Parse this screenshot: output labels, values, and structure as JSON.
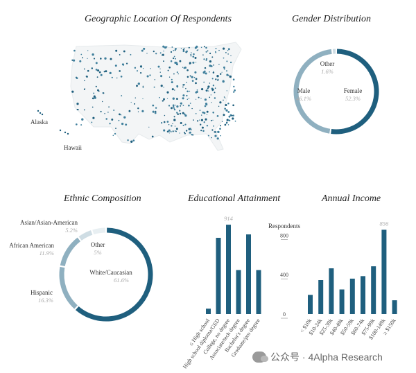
{
  "titles": {
    "geo": "Geographic Location Of Respondents",
    "gender": "Gender Distribution",
    "ethnic": "Ethnic Composition",
    "education": "Educational Attainment",
    "income": "Annual Income"
  },
  "map_labels": {
    "alaska": "Alaska",
    "hawaii": "Hawaii"
  },
  "colors": {
    "dark": "#1f5f7e",
    "mid": "#8fb0c0",
    "light": "#cfdde4",
    "pale": "#e8eff2"
  },
  "chart_data": [
    {
      "type": "pie",
      "name": "gender",
      "title": "Gender Distribution",
      "slices": [
        {
          "label": "Female",
          "value": 52.3,
          "display": "52.3%"
        },
        {
          "label": "Male",
          "value": 46.1,
          "display": "46.1%"
        },
        {
          "label": "Other",
          "value": 1.6,
          "display": "1.6%"
        }
      ]
    },
    {
      "type": "pie",
      "name": "ethnic",
      "title": "Ethnic Composition",
      "slices": [
        {
          "label": "White/Caucasian",
          "value": 61.6,
          "display": "61.6%"
        },
        {
          "label": "Hispanic",
          "value": 16.3,
          "display": "16.3%"
        },
        {
          "label": "African American",
          "value": 11.9,
          "display": "11.9%"
        },
        {
          "label": "Asian/Asian-American",
          "value": 5.2,
          "display": "5.2%"
        },
        {
          "label": "Other",
          "value": 5,
          "display": "5%"
        }
      ]
    },
    {
      "type": "bar",
      "name": "education",
      "title": "Educational Attainment",
      "categories": [
        "≤ High school",
        "High school diploma/GED",
        "College, no degree",
        "Associate/tech degree",
        "Bachelor's degree",
        "Graduate/pro degree"
      ],
      "values": [
        55,
        780,
        914,
        450,
        815,
        450
      ],
      "highlight": {
        "index": 2,
        "label": "914"
      },
      "ylim": [
        0,
        1000
      ],
      "yticks": [
        0,
        400,
        800
      ],
      "ylabel": "Respondents",
      "grid": false
    },
    {
      "type": "bar",
      "name": "income",
      "title": "Annual Income",
      "categories": [
        "< $10k",
        "$10-24k",
        "$25-39k",
        "$40-49k",
        "$50-59k",
        "$60-74k",
        "$75-99k",
        "$100-149k",
        "≥ $150k"
      ],
      "values": [
        195,
        345,
        465,
        250,
        360,
        385,
        485,
        856,
        140
      ],
      "highlight": {
        "index": 7,
        "label": "856"
      },
      "ylim": [
        0,
        1000
      ],
      "yticks": [
        0,
        400,
        800
      ],
      "grid": false
    }
  ],
  "watermark": {
    "text": "公众号 · 4Alpha Research"
  }
}
